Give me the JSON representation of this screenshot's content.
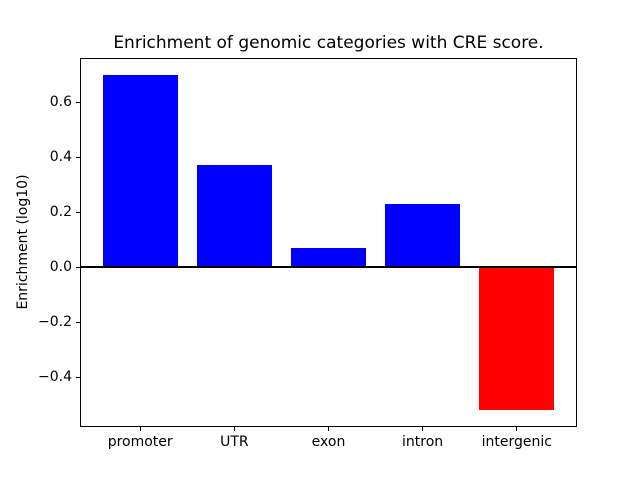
{
  "chart_data": {
    "type": "bar",
    "title": "Enrichment of genomic categories with CRE score.",
    "xlabel": "",
    "ylabel": "Enrichment (log10)",
    "categories": [
      "promoter",
      "UTR",
      "exon",
      "intron",
      "intergenic"
    ],
    "values": [
      0.7,
      0.37,
      0.07,
      0.23,
      -0.52
    ],
    "bar_colors": [
      "#0000ff",
      "#0000ff",
      "#0000ff",
      "#0000ff",
      "#ff0000"
    ],
    "positive_color": "#0000ff",
    "negative_color": "#ff0000",
    "yticks": [
      0.6,
      0.4,
      0.2,
      0.0,
      -0.2,
      -0.4
    ],
    "ytick_labels": [
      "0.6",
      "0.4",
      "0.2",
      "0.0",
      "−0.2",
      "−0.4"
    ],
    "ylim": [
      -0.58,
      0.76
    ],
    "xlim": [
      -0.64,
      4.64
    ],
    "bar_width_fraction": 0.8,
    "zero_line": true,
    "grid": false,
    "legend": null,
    "background_color": "#ffffff",
    "axes_color": "#000000"
  }
}
